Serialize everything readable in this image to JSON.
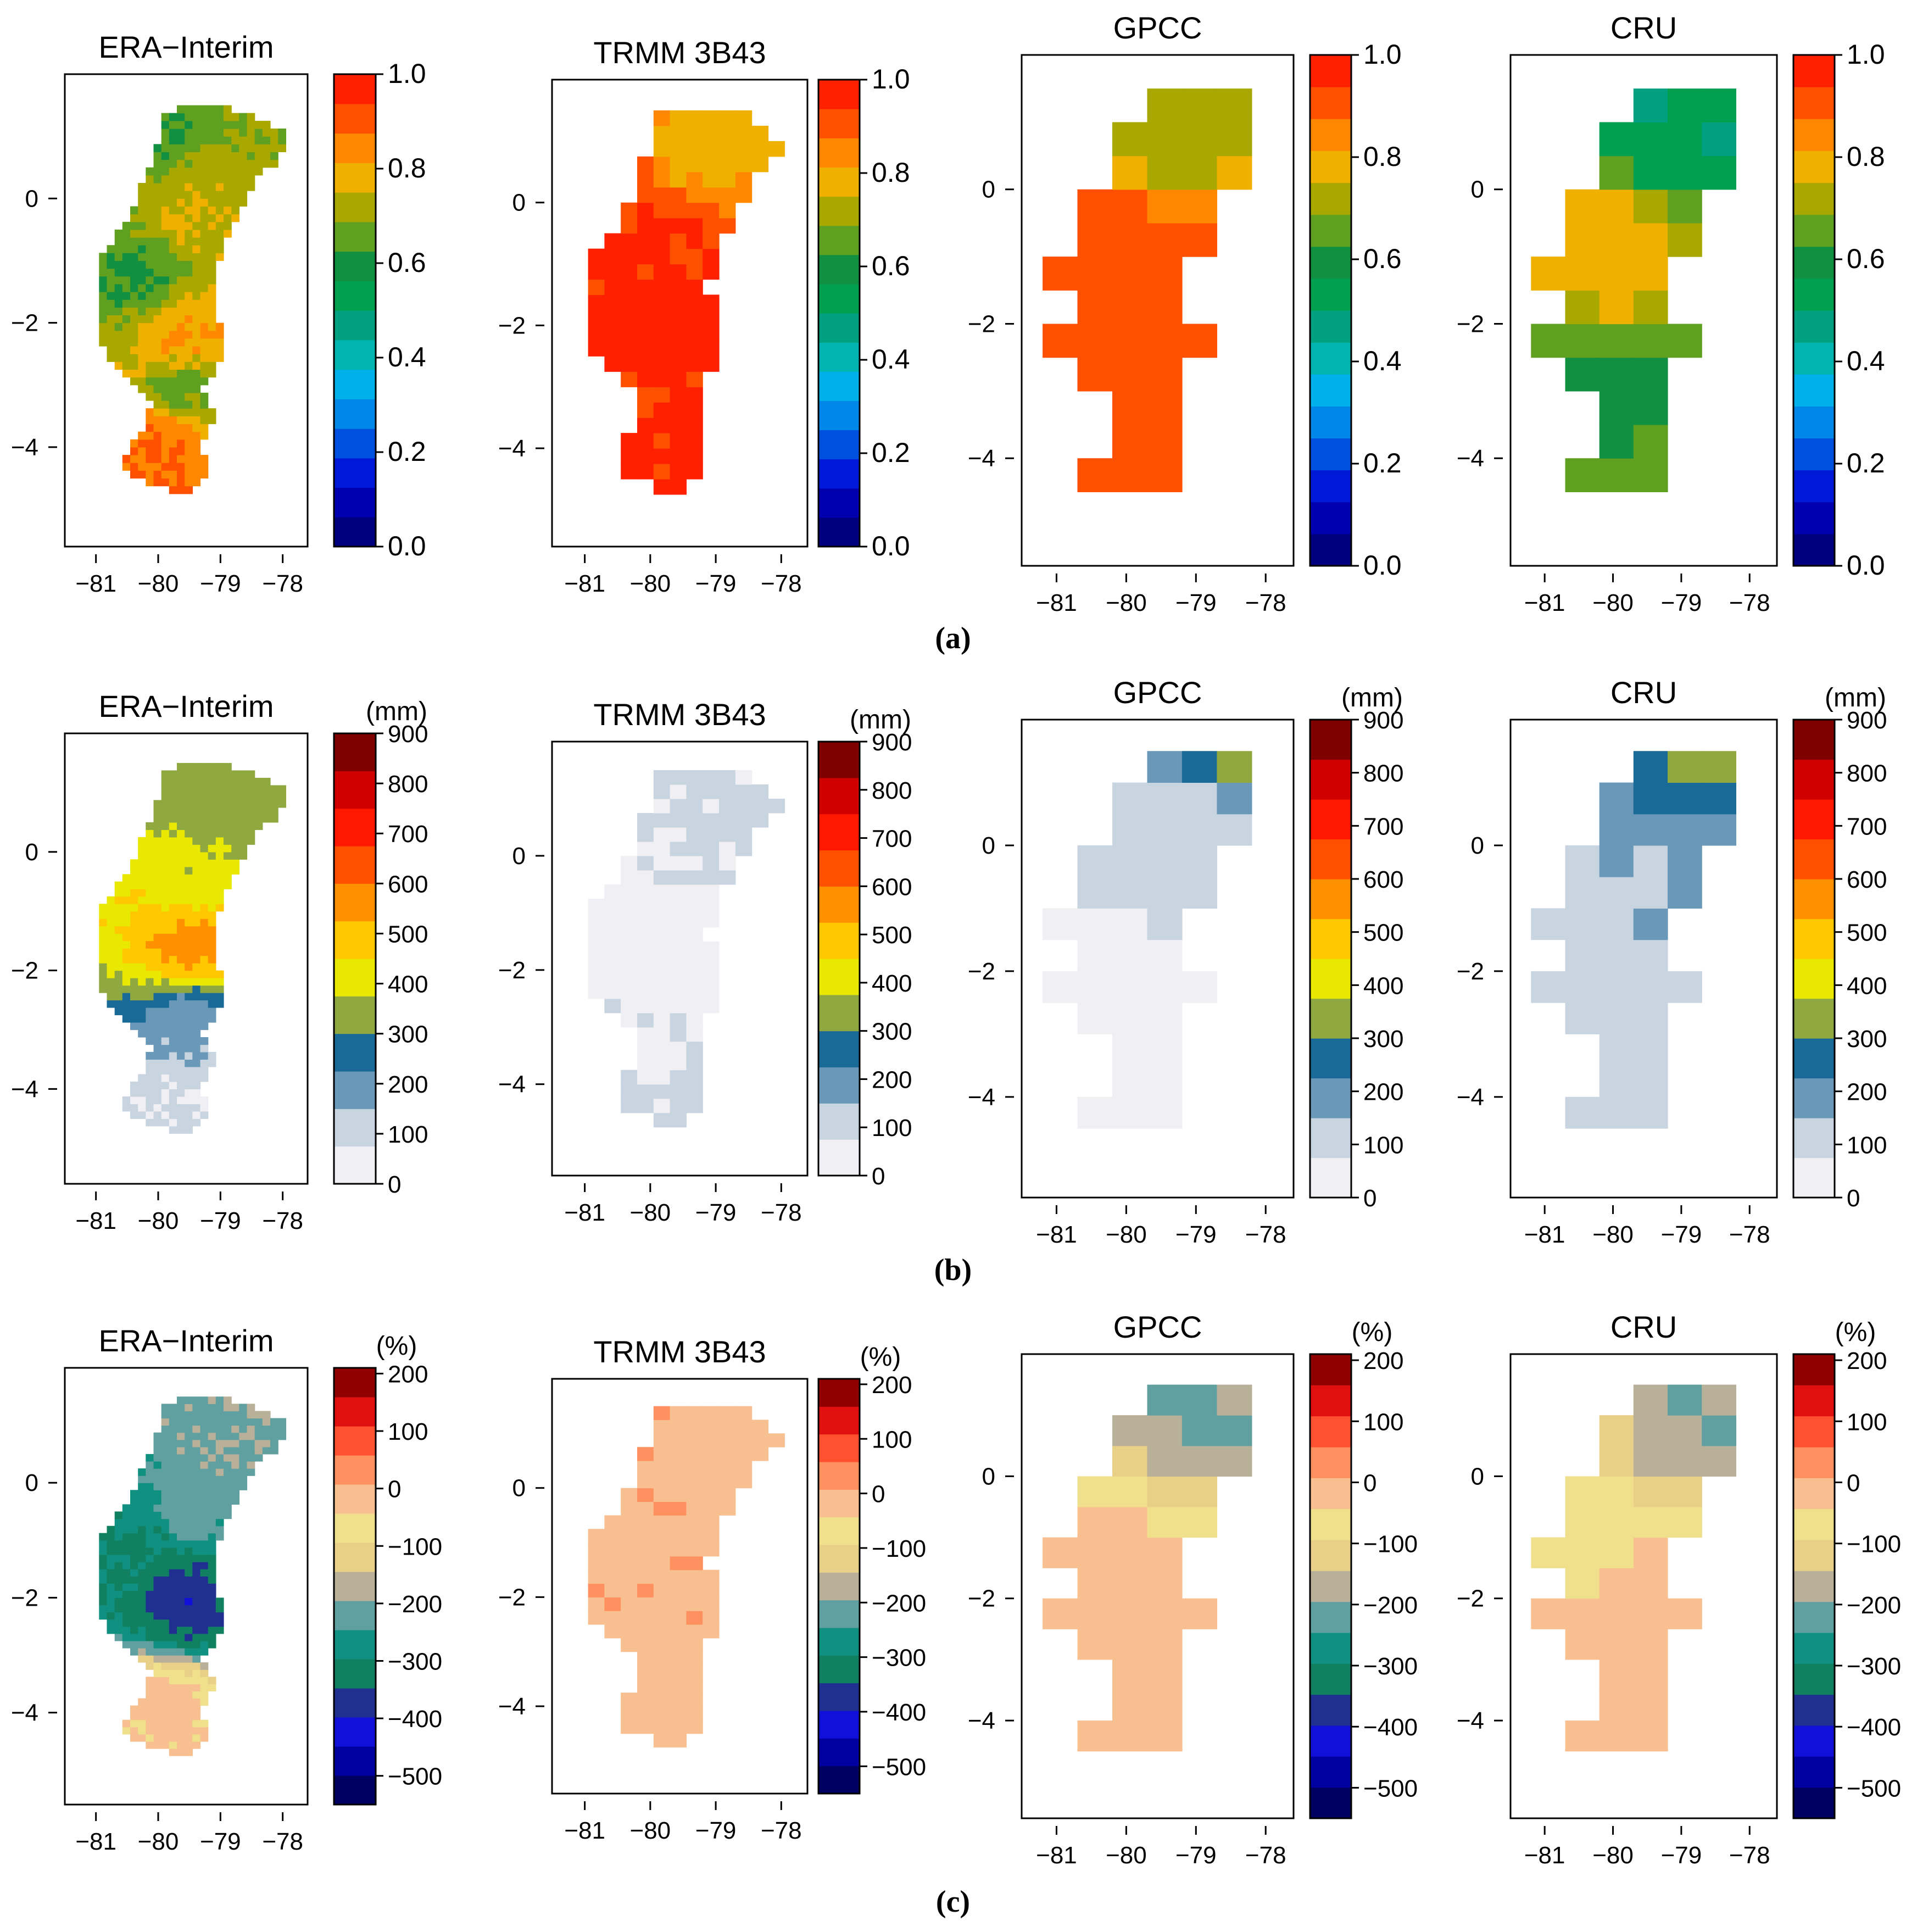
{
  "figure": {
    "row_labels": [
      "(a)",
      "(b)",
      "(c)"
    ],
    "panel_titles": [
      "ERA−Interim",
      "TRMM 3B43",
      "GPCC",
      "CRU"
    ],
    "x_ticks": [
      "−81",
      "−80",
      "−79",
      "−78"
    ],
    "y_ticks": [
      "0",
      "−2",
      "−4"
    ]
  },
  "chart_data": [
    {
      "type": "heatmap",
      "row": "a",
      "title": "ERA−Interim",
      "xlim": [
        -81.5,
        -77.6
      ],
      "ylim": [
        -5.6,
        2.0
      ],
      "colorbar": {
        "unit": "",
        "ticks": [
          "0.0",
          "0.2",
          "0.4",
          "0.6",
          "0.8",
          "1.0"
        ],
        "range": [
          0,
          1
        ],
        "palette": [
          "#00007f",
          "#0000b0",
          "#0018d8",
          "#0050e0",
          "#0088e8",
          "#00b0e8",
          "#00b4b0",
          "#00a080",
          "#00a050",
          "#109040",
          "#60a020",
          "#a8a800",
          "#f0b000",
          "#ff8800",
          "#ff5000",
          "#ff2000"
        ]
      },
      "region_summary": [
        {
          "lon": -79.9,
          "lat": 0.9,
          "value": 0.62
        },
        {
          "lon": -79.5,
          "lat": 0.3,
          "value": 0.72
        },
        {
          "lon": -79.6,
          "lat": -0.2,
          "value": 0.76
        },
        {
          "lon": -80.3,
          "lat": -1.2,
          "value": 0.62
        },
        {
          "lon": -79.6,
          "lat": -2.3,
          "value": 0.82
        },
        {
          "lon": -79.6,
          "lat": -3.0,
          "value": 0.66
        },
        {
          "lon": -79.9,
          "lat": -4.0,
          "value": 0.88
        }
      ]
    },
    {
      "type": "heatmap",
      "row": "a",
      "title": "TRMM 3B43",
      "xlim": [
        -81.5,
        -77.6
      ],
      "ylim": [
        -5.6,
        2.0
      ],
      "colorbar": {
        "unit": "",
        "ticks": [
          "0.0",
          "0.2",
          "0.4",
          "0.6",
          "0.8",
          "1.0"
        ],
        "range": [
          0,
          1
        ]
      },
      "region_summary": [
        {
          "lon": -79.2,
          "lat": 1.0,
          "value": 0.78
        },
        {
          "lon": -80.0,
          "lat": -0.5,
          "value": 0.96
        },
        {
          "lon": -80.2,
          "lat": -2.0,
          "value": 0.97
        },
        {
          "lon": -79.9,
          "lat": -4.0,
          "value": 0.95
        }
      ]
    },
    {
      "type": "heatmap",
      "row": "a",
      "title": "GPCC",
      "xlim": [
        -81.5,
        -77.6
      ],
      "ylim": [
        -5.6,
        2.0
      ],
      "colorbar": {
        "unit": "",
        "ticks": [
          "0.0",
          "0.2",
          "0.4",
          "0.6",
          "0.8",
          "1.0"
        ],
        "range": [
          0,
          1
        ]
      },
      "region_summary": [
        {
          "lon": -79.0,
          "lat": 1.0,
          "value": 0.72
        },
        {
          "lon": -80.0,
          "lat": -1.0,
          "value": 0.92
        },
        {
          "lon": -80.0,
          "lat": -3.0,
          "value": 0.9
        },
        {
          "lon": -80.0,
          "lat": -4.5,
          "value": 0.88
        }
      ]
    },
    {
      "type": "heatmap",
      "row": "a",
      "title": "CRU",
      "xlim": [
        -81.5,
        -77.6
      ],
      "ylim": [
        -5.6,
        2.0
      ],
      "colorbar": {
        "unit": "",
        "ticks": [
          "0.0",
          "0.2",
          "0.4",
          "0.6",
          "0.8",
          "1.0"
        ],
        "range": [
          0,
          1
        ]
      },
      "region_summary": [
        {
          "lon": -79.0,
          "lat": 1.0,
          "value": 0.5
        },
        {
          "lon": -80.0,
          "lat": -1.0,
          "value": 0.8
        },
        {
          "lon": -80.0,
          "lat": -3.0,
          "value": 0.62
        },
        {
          "lon": -79.5,
          "lat": -4.5,
          "value": 0.62
        }
      ]
    },
    {
      "type": "heatmap",
      "row": "b",
      "title": "ERA−Interim",
      "xlim": [
        -81.5,
        -77.6
      ],
      "ylim": [
        -5.6,
        2.0
      ],
      "colorbar": {
        "unit": "(mm)",
        "ticks": [
          "0",
          "100",
          "200",
          "300",
          "400",
          "500",
          "600",
          "700",
          "800",
          "900"
        ],
        "range": [
          0,
          900
        ],
        "palette": [
          "#f0f0f4",
          "#c8d4e0",
          "#6a98b8",
          "#1a6a98",
          "#90a840",
          "#e8e800",
          "#ffc800",
          "#ff9000",
          "#ff5000",
          "#ff1800",
          "#d00000",
          "#800000"
        ]
      },
      "region_summary": [
        {
          "lon": -79.0,
          "lat": 0.8,
          "value": 330
        },
        {
          "lon": -79.5,
          "lat": -0.5,
          "value": 400
        },
        {
          "lon": -79.5,
          "lat": -1.5,
          "value": 560
        },
        {
          "lon": -79.5,
          "lat": -3.0,
          "value": 170
        },
        {
          "lon": -79.8,
          "lat": -4.2,
          "value": 80
        }
      ]
    },
    {
      "type": "heatmap",
      "row": "b",
      "title": "TRMM 3B43",
      "xlim": [
        -81.5,
        -77.6
      ],
      "ylim": [
        -5.6,
        2.0
      ],
      "colorbar": {
        "unit": "(mm)",
        "ticks": [
          "0",
          "100",
          "200",
          "300",
          "400",
          "500",
          "600",
          "700",
          "800",
          "900"
        ],
        "range": [
          0,
          900
        ]
      },
      "region_summary": [
        {
          "lon": -79.2,
          "lat": 0.6,
          "value": 90
        },
        {
          "lon": -80.0,
          "lat": -1.5,
          "value": 40
        },
        {
          "lon": -79.8,
          "lat": -4.0,
          "value": 80
        }
      ]
    },
    {
      "type": "heatmap",
      "row": "b",
      "title": "GPCC",
      "xlim": [
        -81.5,
        -77.6
      ],
      "ylim": [
        -5.6,
        2.0
      ],
      "colorbar": {
        "unit": "(mm)",
        "ticks": [
          "0",
          "100",
          "200",
          "300",
          "400",
          "500",
          "600",
          "700",
          "800",
          "900"
        ],
        "range": [
          0,
          900
        ]
      },
      "region_summary": [
        {
          "lon": -78.5,
          "lat": 1.5,
          "value": 310
        },
        {
          "lon": -79.0,
          "lat": 0.5,
          "value": 110
        },
        {
          "lon": -80.0,
          "lat": -2.0,
          "value": 50
        },
        {
          "lon": -80.0,
          "lat": -4.5,
          "value": 60
        }
      ]
    },
    {
      "type": "heatmap",
      "row": "b",
      "title": "CRU",
      "xlim": [
        -81.5,
        -77.6
      ],
      "ylim": [
        -5.6,
        2.0
      ],
      "colorbar": {
        "unit": "(mm)",
        "ticks": [
          "0",
          "100",
          "200",
          "300",
          "400",
          "500",
          "600",
          "700",
          "800",
          "900"
        ],
        "range": [
          0,
          900
        ]
      },
      "region_summary": [
        {
          "lon": -78.5,
          "lat": 1.5,
          "value": 310
        },
        {
          "lon": -79.0,
          "lat": -0.5,
          "value": 150
        },
        {
          "lon": -80.0,
          "lat": -2.5,
          "value": 100
        },
        {
          "lon": -80.0,
          "lat": -4.5,
          "value": 100
        }
      ]
    },
    {
      "type": "heatmap",
      "row": "c",
      "title": "ERA−Interim",
      "xlim": [
        -81.5,
        -77.6
      ],
      "ylim": [
        -5.6,
        2.0
      ],
      "colorbar": {
        "unit": "(%)",
        "ticks": [
          "200",
          "100",
          "0",
          "−100",
          "−200",
          "−300",
          "−400",
          "−500"
        ],
        "range": [
          -550,
          210
        ],
        "palette": [
          "#000060",
          "#0000a0",
          "#1010d8",
          "#203090",
          "#108060",
          "#109080",
          "#60a0a0",
          "#b8b098",
          "#e8d088",
          "#f0e08c",
          "#f8c090",
          "#ff9060",
          "#ff5030",
          "#e01010",
          "#900000"
        ]
      },
      "region_summary": [
        {
          "lon": -79.0,
          "lat": 0.8,
          "value": -200
        },
        {
          "lon": -79.5,
          "lat": -0.5,
          "value": -220
        },
        {
          "lon": -79.5,
          "lat": -2.0,
          "value": -380
        },
        {
          "lon": -80.3,
          "lat": -1.0,
          "value": -300
        },
        {
          "lon": -79.8,
          "lat": -4.0,
          "value": -20
        }
      ]
    },
    {
      "type": "heatmap",
      "row": "c",
      "title": "TRMM 3B43",
      "xlim": [
        -81.5,
        -77.6
      ],
      "ylim": [
        -5.6,
        2.0
      ],
      "colorbar": {
        "unit": "(%)",
        "ticks": [
          "200",
          "100",
          "0",
          "−100",
          "−200",
          "−300",
          "−400",
          "−500"
        ],
        "range": [
          -550,
          210
        ]
      },
      "region_summary": [
        {
          "lon": -79.5,
          "lat": -1.5,
          "value": -10
        },
        {
          "lon": -80.0,
          "lat": -4.0,
          "value": -20
        }
      ]
    },
    {
      "type": "heatmap",
      "row": "c",
      "title": "GPCC",
      "xlim": [
        -81.5,
        -77.6
      ],
      "ylim": [
        -5.6,
        2.0
      ],
      "colorbar": {
        "unit": "(%)",
        "ticks": [
          "200",
          "100",
          "0",
          "−100",
          "−200",
          "−300",
          "−400",
          "−500"
        ],
        "range": [
          -550,
          210
        ]
      },
      "region_summary": [
        {
          "lon": -78.5,
          "lat": 1.5,
          "value": -200
        },
        {
          "lon": -80.0,
          "lat": -2.0,
          "value": -10
        }
      ]
    },
    {
      "type": "heatmap",
      "row": "c",
      "title": "CRU",
      "xlim": [
        -81.5,
        -77.6
      ],
      "ylim": [
        -5.6,
        2.0
      ],
      "colorbar": {
        "unit": "(%)",
        "ticks": [
          "200",
          "100",
          "0",
          "−100",
          "−200",
          "−300",
          "−400",
          "−500"
        ],
        "range": [
          -550,
          210
        ]
      },
      "region_summary": [
        {
          "lon": -78.5,
          "lat": 1.5,
          "value": -200
        },
        {
          "lon": -81.0,
          "lat": -0.7,
          "value": -80
        },
        {
          "lon": -80.0,
          "lat": -2.5,
          "value": -15
        }
      ]
    }
  ]
}
